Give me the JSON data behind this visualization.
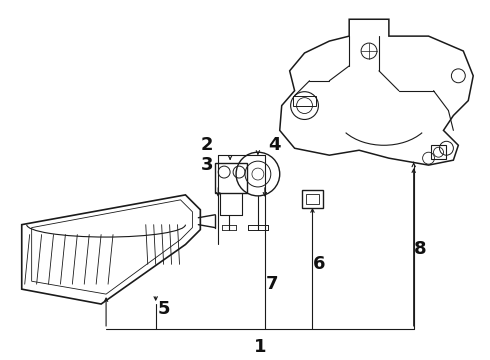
{
  "background_color": "#ffffff",
  "line_color": "#1a1a1a",
  "label_color": "#111111",
  "fig_width": 4.9,
  "fig_height": 3.6,
  "dpi": 100,
  "font_size": 13
}
